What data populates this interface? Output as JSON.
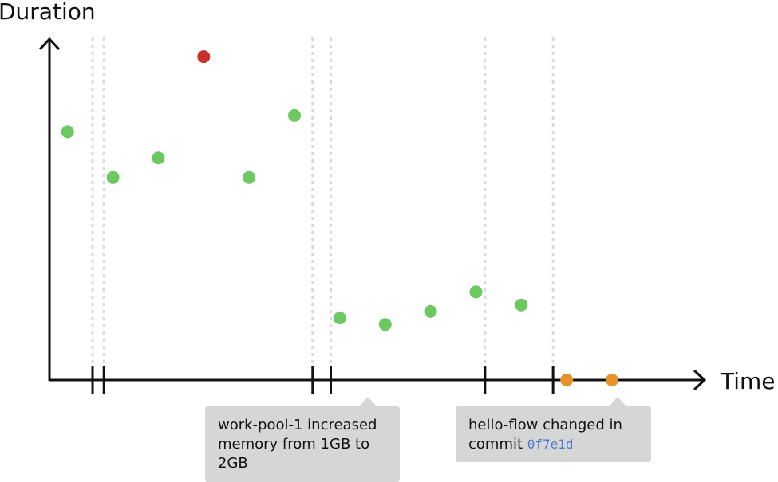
{
  "chart_data": {
    "type": "scatter",
    "title": "",
    "xlabel": "Time",
    "ylabel": "Duration",
    "grid": false,
    "xlim": [
      0,
      14
    ],
    "ylim": [
      0,
      10
    ],
    "colors": {
      "normal": "#6cc962",
      "outlier": "#c9302c",
      "pending": "#e8922a",
      "axis": "#111111",
      "guide": "#d9d9d9"
    },
    "points": [
      {
        "x": 0.4,
        "y": 7.6,
        "status": "normal"
      },
      {
        "x": 1.4,
        "y": 6.2,
        "status": "normal"
      },
      {
        "x": 2.4,
        "y": 6.8,
        "status": "normal"
      },
      {
        "x": 3.4,
        "y": 9.9,
        "status": "outlier"
      },
      {
        "x": 4.4,
        "y": 6.2,
        "status": "normal"
      },
      {
        "x": 5.4,
        "y": 8.1,
        "status": "normal"
      },
      {
        "x": 6.4,
        "y": 1.9,
        "status": "normal"
      },
      {
        "x": 7.4,
        "y": 1.7,
        "status": "normal"
      },
      {
        "x": 8.4,
        "y": 2.1,
        "status": "normal"
      },
      {
        "x": 9.4,
        "y": 2.7,
        "status": "normal"
      },
      {
        "x": 10.4,
        "y": 2.3,
        "status": "normal"
      },
      {
        "x": 11.4,
        "y": 0,
        "status": "pending"
      },
      {
        "x": 12.4,
        "y": 0,
        "status": "pending"
      }
    ],
    "events": [
      {
        "x": 0.95,
        "annotation": ""
      },
      {
        "x": 1.2,
        "annotation": ""
      },
      {
        "x": 5.8,
        "annotation": ""
      },
      {
        "x": 6.2,
        "annotation": "work-pool-1"
      },
      {
        "x": 9.6,
        "annotation": ""
      },
      {
        "x": 11.1,
        "annotation": "hello-flow"
      }
    ],
    "annotations": [
      {
        "text": "work-pool-1 increased memory from 1GB to 2GB"
      },
      {
        "prefix": "hello-flow changed in commit ",
        "commit": "0f7e1d"
      }
    ]
  }
}
